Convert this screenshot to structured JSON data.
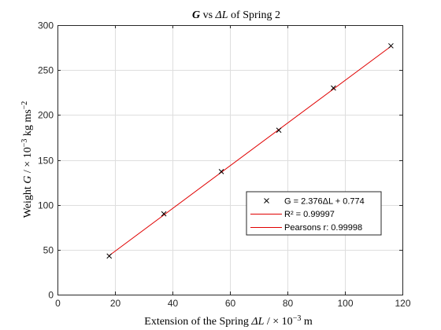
{
  "chart_data": {
    "type": "scatter",
    "title": {
      "sym1": "G",
      "mid": " vs ",
      "sym2": "ΔL",
      "tail": " of Spring 2"
    },
    "xlabel": {
      "pre": "Extension of the Spring ",
      "sym": "ΔL",
      "post": " / × 10",
      "sup": "−3",
      "unit": " m"
    },
    "ylabel": {
      "pre": "Weight ",
      "sym": "G",
      "post": " / × 10",
      "sup": "−3",
      "unit": " kg ms",
      "unit_sup": "−2"
    },
    "xlim": [
      0,
      120
    ],
    "ylim": [
      0,
      300
    ],
    "xticks": [
      0,
      20,
      40,
      60,
      80,
      100,
      120
    ],
    "yticks": [
      0,
      50,
      100,
      150,
      200,
      250,
      300
    ],
    "grid": true,
    "series": [
      {
        "kind": "points",
        "marker": "x",
        "color": "#000000",
        "x": [
          18,
          37,
          57,
          77,
          96,
          116
        ],
        "y": [
          43,
          90,
          137,
          183,
          230,
          277
        ]
      },
      {
        "kind": "fit-line",
        "color": "#e00000",
        "slope": 2.376,
        "intercept": 0.774,
        "x_range": [
          18,
          116
        ]
      }
    ],
    "legend": {
      "placement": "lower-right",
      "entries": [
        {
          "kind": "marker",
          "text": "G = 2.376ΔL + 0.774"
        },
        {
          "kind": "line",
          "text": "R² = 0.99997"
        },
        {
          "kind": "line",
          "text": "Pearsons r: 0.99998"
        }
      ]
    }
  }
}
